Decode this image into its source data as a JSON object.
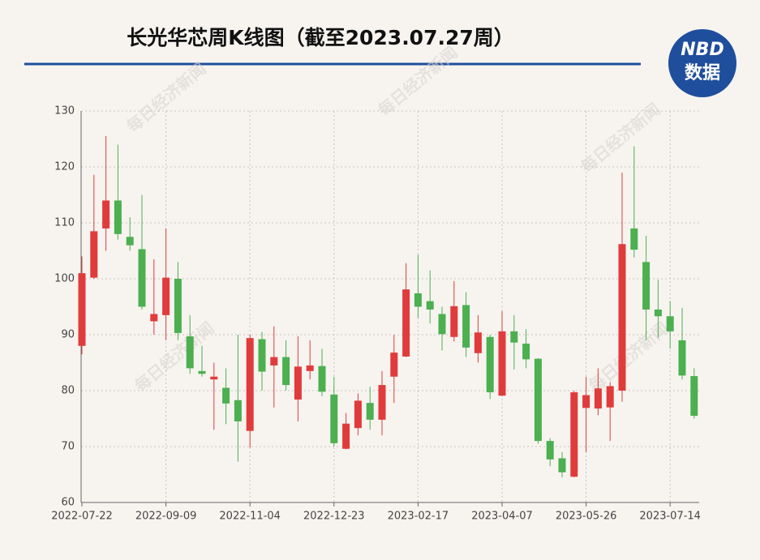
{
  "chart_data": {
    "type": "candlestick",
    "title": "长光华芯周K线图（截至2023.07.27周）",
    "categories": [
      "2022-07-22",
      null,
      null,
      null,
      null,
      null,
      null,
      "2022-09-09",
      null,
      null,
      null,
      null,
      null,
      null,
      "2022-11-04",
      null,
      null,
      null,
      null,
      null,
      null,
      "2022-12-23",
      null,
      null,
      null,
      null,
      null,
      null,
      "2023-02-17",
      null,
      null,
      null,
      null,
      null,
      null,
      "2023-04-07",
      null,
      null,
      null,
      null,
      null,
      null,
      "2023-05-26",
      null,
      null,
      null,
      null,
      null,
      null,
      "2023-07-14",
      null,
      null
    ],
    "series": [
      {
        "open": [
          88,
          100.2,
          109,
          114,
          107.5,
          105.3,
          92.4,
          93.5,
          100,
          89.7,
          83.5,
          82,
          80.5,
          78.3,
          72.8,
          89.2,
          84.5,
          86,
          78.4,
          83.5,
          84.4,
          79.3,
          69.6,
          73.3,
          77.8,
          74.8,
          82.5,
          86.1,
          97.4,
          96,
          93.7,
          89.6,
          95.3,
          86.7,
          89.6,
          79.1,
          90.6,
          88.4,
          85.7,
          71,
          67.9,
          64.6,
          76.9,
          76.8,
          77,
          80,
          109,
          103,
          94.5,
          93.3,
          89,
          82.6
        ],
        "high": [
          104,
          118.6,
          125.5,
          124,
          111,
          115,
          103.5,
          109,
          103,
          93.5,
          88,
          85,
          84,
          90,
          90,
          90.5,
          91.5,
          89,
          89.7,
          89,
          87.5,
          82.5,
          76,
          79.5,
          80.7,
          83.5,
          90,
          102.8,
          104.3,
          101.5,
          95,
          99.6,
          97.6,
          93.5,
          90,
          94.2,
          93.5,
          91,
          85.8,
          71.5,
          69,
          80,
          82.5,
          84,
          81.5,
          119,
          123.7,
          107.7,
          99.8,
          96,
          94.8,
          84
        ],
        "low": [
          86.5,
          100,
          105,
          107,
          105,
          94.5,
          90,
          89,
          89,
          83,
          82.5,
          73,
          74,
          67.3,
          69.8,
          80,
          77,
          80,
          74.5,
          82,
          79,
          70,
          69.5,
          72,
          73,
          72,
          77.8,
          86,
          93,
          92,
          87.2,
          88.8,
          86,
          85,
          78.5,
          79,
          83.8,
          84,
          70.5,
          66.5,
          64.5,
          64.5,
          69,
          75.6,
          71,
          78,
          103.8,
          89,
          89.5,
          87.5,
          82,
          75
        ],
        "close": [
          101,
          108.5,
          114,
          108,
          106,
          95,
          93.7,
          100.2,
          90.3,
          84,
          83,
          82.5,
          77.7,
          74.5,
          89.4,
          83.4,
          86,
          81,
          84.3,
          84.5,
          79.8,
          70.6,
          74.1,
          78.2,
          74.8,
          81,
          86.8,
          98.1,
          95,
          94.5,
          90.1,
          95.1,
          87.7,
          90.4,
          79.7,
          90.6,
          88.6,
          85.6,
          71,
          67.7,
          65.4,
          79.7,
          79.2,
          80.4,
          80.8,
          106.2,
          105.2,
          94.5,
          93.3,
          90.6,
          82.7,
          75.5
        ]
      }
    ],
    "up_color": "#e03b3b",
    "down_color": "#4caf50",
    "ylim": [
      60,
      130
    ],
    "yticks": [
      60,
      70,
      80,
      90,
      100,
      110,
      120,
      130
    ],
    "grid": true
  },
  "logo": {
    "top": "NBD",
    "bottom": "数据"
  },
  "watermark": "每日经济新闻"
}
